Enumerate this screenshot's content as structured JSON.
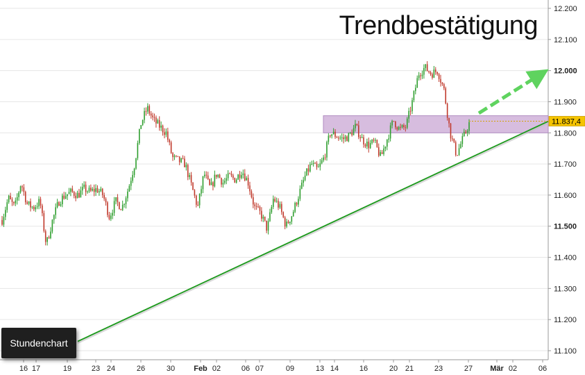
{
  "chart_data": {
    "type": "candlestick",
    "title": "Trendbestätigung",
    "badge": "Stundenchart",
    "y_ticks": [
      "11.100",
      "11.200",
      "11.300",
      "11.400",
      "11.500",
      "11.600",
      "11.700",
      "11.800",
      "11.900",
      "12.000",
      "12.100",
      "12.200"
    ],
    "y_major": [
      "11.500",
      "12.000"
    ],
    "ylim": [
      11080,
      12220
    ],
    "last_value": 11837.4,
    "last_value_label": "11.837,4",
    "x_ticks": [
      "16",
      "17",
      "19",
      "23",
      "24",
      "26",
      "30",
      "Feb",
      "02",
      "06",
      "07",
      "09",
      "13",
      "14",
      "16",
      "20",
      "21",
      "23",
      "27",
      "Mär",
      "02",
      "06"
    ],
    "x_month_labels": [
      "Feb",
      "Mär"
    ],
    "grid": true,
    "legend": "none",
    "series": [
      {
        "kind": "price_path",
        "values": [
          11520,
          11590,
          11560,
          11640,
          11570,
          11560,
          11580,
          11440,
          11520,
          11580,
          11600,
          11610,
          11600,
          11620,
          11610,
          11620,
          11600,
          11530,
          11580,
          11560,
          11620,
          11700,
          11830,
          11880,
          11840,
          11820,
          11800,
          11720,
          11710,
          11700,
          11630,
          11560,
          11670,
          11620,
          11670,
          11640,
          11660,
          11650,
          11680,
          11640,
          11560,
          11540,
          11490,
          11590,
          11560,
          11500,
          11540,
          11600,
          11660,
          11700,
          11680,
          11720,
          11800,
          11790,
          11780,
          11790,
          11820,
          11780,
          11760,
          11770,
          11720,
          11780,
          11840,
          11810,
          11820,
          11900,
          11990,
          12010,
          11990,
          12000,
          11940,
          11800,
          11730,
          11780,
          11830
        ],
        "colors": {
          "up": "#2e9e2e",
          "down": "#c0392b"
        }
      },
      {
        "kind": "trendline",
        "from": {
          "x_index": 0,
          "y": 11100
        },
        "to": {
          "x_index": 74,
          "y": 11837
        },
        "color": "#1a9a1a"
      },
      {
        "kind": "resistance_zone",
        "y_from": 11800,
        "y_to": 11855,
        "color": "#c9a7d4"
      },
      {
        "kind": "projection_arrow",
        "target_y": 12000,
        "color": "#5fd35f"
      }
    ]
  }
}
